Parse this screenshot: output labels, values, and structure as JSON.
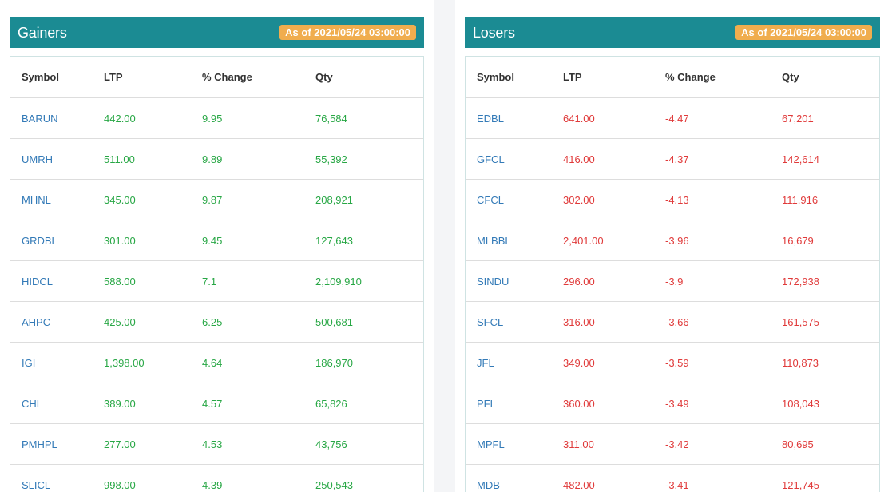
{
  "colors": {
    "header_bg": "#1b8b93",
    "badge_bg": "#f0ad4e",
    "symbol": "#337ab7",
    "gain": "#28a745",
    "loss": "#e03a3a"
  },
  "columns": [
    "Symbol",
    "LTP",
    "% Change",
    "Qty"
  ],
  "gainers": {
    "title": "Gainers",
    "as_of": "As of 2021/05/24 03:00:00",
    "rows": [
      {
        "symbol": "BARUN",
        "ltp": "442.00",
        "change": "9.95",
        "qty": "76,584"
      },
      {
        "symbol": "UMRH",
        "ltp": "511.00",
        "change": "9.89",
        "qty": "55,392"
      },
      {
        "symbol": "MHNL",
        "ltp": "345.00",
        "change": "9.87",
        "qty": "208,921"
      },
      {
        "symbol": "GRDBL",
        "ltp": "301.00",
        "change": "9.45",
        "qty": "127,643"
      },
      {
        "symbol": "HIDCL",
        "ltp": "588.00",
        "change": "7.1",
        "qty": "2,109,910"
      },
      {
        "symbol": "AHPC",
        "ltp": "425.00",
        "change": "6.25",
        "qty": "500,681"
      },
      {
        "symbol": "IGI",
        "ltp": "1,398.00",
        "change": "4.64",
        "qty": "186,970"
      },
      {
        "symbol": "CHL",
        "ltp": "389.00",
        "change": "4.57",
        "qty": "65,826"
      },
      {
        "symbol": "PMHPL",
        "ltp": "277.00",
        "change": "4.53",
        "qty": "43,756"
      },
      {
        "symbol": "SLICL",
        "ltp": "998.00",
        "change": "4.39",
        "qty": "250,543"
      }
    ]
  },
  "losers": {
    "title": "Losers",
    "as_of": "As of 2021/05/24 03:00:00",
    "rows": [
      {
        "symbol": "EDBL",
        "ltp": "641.00",
        "change": "-4.47",
        "qty": "67,201"
      },
      {
        "symbol": "GFCL",
        "ltp": "416.00",
        "change": "-4.37",
        "qty": "142,614"
      },
      {
        "symbol": "CFCL",
        "ltp": "302.00",
        "change": "-4.13",
        "qty": "111,916"
      },
      {
        "symbol": "MLBBL",
        "ltp": "2,401.00",
        "change": "-3.96",
        "qty": "16,679"
      },
      {
        "symbol": "SINDU",
        "ltp": "296.00",
        "change": "-3.9",
        "qty": "172,938"
      },
      {
        "symbol": "SFCL",
        "ltp": "316.00",
        "change": "-3.66",
        "qty": "161,575"
      },
      {
        "symbol": "JFL",
        "ltp": "349.00",
        "change": "-3.59",
        "qty": "110,873"
      },
      {
        "symbol": "PFL",
        "ltp": "360.00",
        "change": "-3.49",
        "qty": "108,043"
      },
      {
        "symbol": "MPFL",
        "ltp": "311.00",
        "change": "-3.42",
        "qty": "80,695"
      },
      {
        "symbol": "MDB",
        "ltp": "482.00",
        "change": "-3.41",
        "qty": "121,745"
      }
    ]
  }
}
